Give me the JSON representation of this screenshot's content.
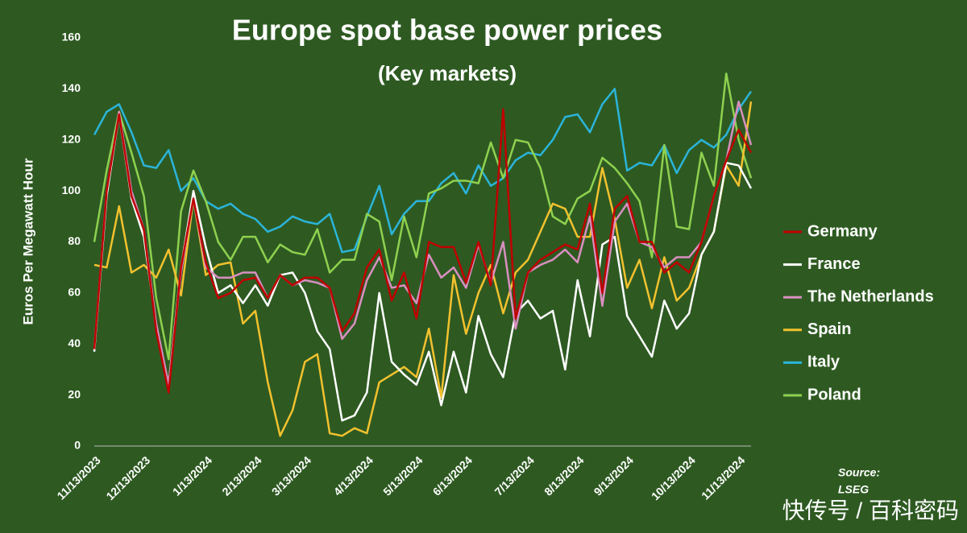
{
  "chart_data": {
    "type": "line",
    "title": "Europe spot base power prices",
    "subtitle": "(Key markets)",
    "y_label": "Euros Per Megawatt Hour",
    "source": [
      "Source:",
      "LSEG"
    ],
    "watermark": "快传号 / 百科密码",
    "categories": [
      "11/13/2023",
      null,
      null,
      null,
      "12/13/2023",
      null,
      null,
      null,
      null,
      "1/13/2024",
      null,
      null,
      null,
      "2/13/2024",
      null,
      null,
      null,
      "3/13/2024",
      null,
      null,
      null,
      null,
      "4/13/2024",
      null,
      null,
      null,
      "5/13/2024",
      null,
      null,
      null,
      "6/13/2024",
      null,
      null,
      null,
      null,
      "7/13/2024",
      null,
      null,
      null,
      "8/13/2024",
      null,
      null,
      null,
      "9/13/2024",
      null,
      null,
      null,
      null,
      "10/13/2024",
      null,
      null,
      null,
      "11/13/2024",
      null
    ],
    "ylim": [
      0,
      160
    ],
    "yticks": [
      0,
      20,
      40,
      60,
      80,
      100,
      120,
      140,
      160
    ],
    "legend": "right",
    "series": [
      {
        "name": "Germany",
        "color": "#c00000",
        "values": [
          38,
          100,
          130,
          98,
          85,
          45,
          21,
          70,
          97,
          72,
          58,
          60,
          65,
          66,
          58,
          67,
          63,
          66,
          66,
          62,
          45,
          52,
          70,
          77,
          57,
          68,
          50,
          80,
          78,
          78,
          64,
          80,
          63,
          132,
          50,
          68,
          73,
          76,
          79,
          77,
          95,
          60,
          93,
          98,
          80,
          80,
          68,
          72,
          68,
          80,
          98,
          112,
          124,
          115
        ]
      },
      {
        "name": "France",
        "color": "#ffffff",
        "values": [
          37,
          98,
          130,
          97,
          82,
          47,
          24,
          70,
          100,
          78,
          60,
          63,
          56,
          63,
          55,
          67,
          68,
          60,
          45,
          38,
          10,
          12,
          21,
          60,
          33,
          28,
          24,
          37,
          16,
          37,
          21,
          51,
          36,
          27,
          52,
          57,
          50,
          53,
          30,
          65,
          43,
          79,
          82,
          51,
          43,
          35,
          57,
          46,
          52,
          75,
          84,
          111,
          110,
          101
        ]
      },
      {
        "name": "The Netherlands",
        "color": "#d98fc0",
        "values": [
          38,
          100,
          131,
          100,
          85,
          48,
          24,
          68,
          97,
          70,
          66,
          66,
          68,
          68,
          58,
          67,
          63,
          65,
          64,
          62,
          42,
          48,
          65,
          74,
          62,
          63,
          56,
          75,
          66,
          70,
          62,
          79,
          64,
          80,
          46,
          68,
          71,
          73,
          77,
          72,
          90,
          55,
          88,
          95,
          80,
          78,
          70,
          74,
          74,
          80,
          98,
          112,
          135,
          118
        ]
      },
      {
        "name": "Spain",
        "color": "#f2c12e",
        "values": [
          71,
          70,
          94,
          68,
          71,
          66,
          77,
          59,
          97,
          67,
          71,
          72,
          48,
          53,
          25,
          4,
          14,
          33,
          36,
          5,
          4,
          7,
          5,
          25,
          28,
          31,
          27,
          46,
          19,
          67,
          44,
          60,
          71,
          52,
          68,
          73,
          84,
          95,
          93,
          82,
          82,
          109,
          89,
          62,
          73,
          54,
          74,
          57,
          62,
          75,
          84,
          110,
          102,
          135
        ]
      },
      {
        "name": "Italy",
        "color": "#2bb4d9",
        "values": [
          122,
          131,
          134,
          123,
          110,
          109,
          116,
          100,
          105,
          96,
          93,
          95,
          91,
          89,
          84,
          86,
          90,
          88,
          87,
          91,
          76,
          77,
          90,
          102,
          83,
          91,
          96,
          96,
          103,
          107,
          99,
          110,
          102,
          105,
          112,
          115,
          114,
          120,
          129,
          130,
          123,
          134,
          140,
          108,
          111,
          110,
          118,
          107,
          116,
          120,
          117,
          122,
          132,
          139
        ]
      },
      {
        "name": "Poland",
        "color": "#8fd14f",
        "values": [
          80,
          108,
          131,
          115,
          98,
          58,
          34,
          92,
          108,
          96,
          80,
          73,
          82,
          82,
          72,
          79,
          76,
          75,
          85,
          68,
          73,
          73,
          91,
          88,
          65,
          90,
          74,
          99,
          101,
          104,
          104,
          103,
          119,
          105,
          120,
          119,
          109,
          90,
          87,
          97,
          100,
          113,
          109,
          103,
          96,
          74,
          118,
          86,
          85,
          115,
          102,
          146,
          120,
          105
        ]
      }
    ]
  }
}
